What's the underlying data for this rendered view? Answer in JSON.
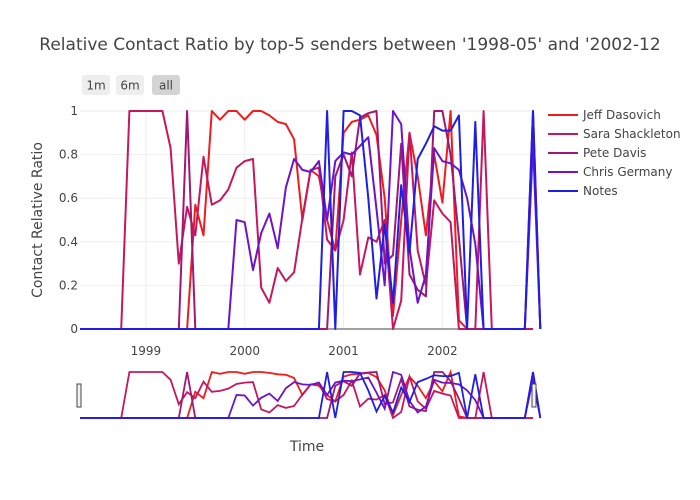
{
  "chart_data": {
    "type": "line",
    "title": "Relative Contact Ratio by top-5 senders between '1998-05' and '2002-12",
    "xlabel": "Time",
    "ylabel": "Contact Relative Ratio",
    "xlim": [
      "1998-05",
      "2002-12"
    ],
    "ylim": [
      0,
      1
    ],
    "x_ticks": [
      "1999",
      "2000",
      "2001",
      "2002"
    ],
    "y_ticks": [
      "0",
      "0.2",
      "0.4",
      "0.6",
      "0.8",
      "1"
    ],
    "grid": true,
    "legend_position": "right",
    "range_selector": [
      {
        "label": "1m",
        "active": false
      },
      {
        "label": "6m",
        "active": false
      },
      {
        "label": "all",
        "active": true
      }
    ],
    "range_slider": true,
    "series": [
      {
        "name": "Jeff Dasovich",
        "color": "#ef1c1c",
        "points": [
          [
            "1998-05",
            0
          ],
          [
            "1999-06",
            0
          ],
          [
            "1999-07",
            0.57
          ],
          [
            "1999-08",
            0.43
          ],
          [
            "1999-09",
            1
          ],
          [
            "1999-10",
            0.96
          ],
          [
            "1999-11",
            1
          ],
          [
            "1999-12",
            1
          ],
          [
            "2000-01",
            0.96
          ],
          [
            "2000-02",
            1
          ],
          [
            "2000-03",
            1
          ],
          [
            "2000-04",
            0.98
          ],
          [
            "2000-05",
            0.95
          ],
          [
            "2000-06",
            0.94
          ],
          [
            "2000-07",
            0.87
          ],
          [
            "2000-08",
            0.5
          ],
          [
            "2000-09",
            0.73
          ],
          [
            "2000-10",
            0.7
          ],
          [
            "2000-11",
            0.5
          ],
          [
            "2000-12",
            0.36
          ],
          [
            "2001-01",
            0.9
          ],
          [
            "2001-02",
            0.95
          ],
          [
            "2001-03",
            0.96
          ],
          [
            "2001-04",
            0.98
          ],
          [
            "2001-05",
            0.89
          ],
          [
            "2001-06",
            0.6
          ],
          [
            "2001-07",
            0.06
          ],
          [
            "2001-08",
            0.5
          ],
          [
            "2001-09",
            0.9
          ],
          [
            "2001-10",
            0.7
          ],
          [
            "2001-11",
            0.43
          ],
          [
            "2001-12",
            0.8
          ],
          [
            "2002-01",
            0.58
          ],
          [
            "2002-02",
            1
          ],
          [
            "2002-03",
            0.04
          ],
          [
            "2002-04",
            0
          ],
          [
            "2002-12",
            0
          ]
        ]
      },
      {
        "name": "Sara Shackleton",
        "color": "#c5175f",
        "points": [
          [
            "1998-05",
            0
          ],
          [
            "1998-10",
            0
          ],
          [
            "1998-11",
            1
          ],
          [
            "1999-01",
            1
          ],
          [
            "1999-02",
            1
          ],
          [
            "1999-03",
            1
          ],
          [
            "1999-04",
            0.83
          ],
          [
            "1999-05",
            0.3
          ],
          [
            "1999-06",
            0.56
          ],
          [
            "1999-07",
            0.43
          ],
          [
            "1999-08",
            0.79
          ],
          [
            "1999-09",
            0.57
          ],
          [
            "1999-10",
            0.59
          ],
          [
            "1999-11",
            0.64
          ],
          [
            "1999-12",
            0.74
          ],
          [
            "2000-01",
            0.77
          ],
          [
            "2000-02",
            0.78
          ],
          [
            "2000-03",
            0.19
          ],
          [
            "2000-04",
            0.12
          ],
          [
            "2000-05",
            0.28
          ],
          [
            "2000-06",
            0.22
          ],
          [
            "2000-07",
            0.26
          ],
          [
            "2000-08",
            0.51
          ],
          [
            "2000-09",
            0.73
          ],
          [
            "2000-10",
            0.74
          ],
          [
            "2000-11",
            0.41
          ],
          [
            "2000-12",
            0.36
          ],
          [
            "2001-01",
            0.5
          ],
          [
            "2001-02",
            0.81
          ],
          [
            "2001-03",
            0.25
          ],
          [
            "2001-04",
            0.42
          ],
          [
            "2001-05",
            0.4
          ],
          [
            "2001-06",
            0.5
          ],
          [
            "2001-07",
            0
          ],
          [
            "2001-08",
            0.13
          ],
          [
            "2001-09",
            0.9
          ],
          [
            "2001-10",
            0.36
          ],
          [
            "2001-11",
            0.2
          ],
          [
            "2001-12",
            0.59
          ],
          [
            "2002-01",
            0.53
          ],
          [
            "2002-02",
            0.49
          ],
          [
            "2002-03",
            0
          ],
          [
            "2002-05",
            0
          ],
          [
            "2002-06",
            1
          ],
          [
            "2002-07",
            0
          ],
          [
            "2002-12",
            0
          ]
        ]
      },
      {
        "name": "Pete Davis",
        "color": "#a01874",
        "points": [
          [
            "1998-05",
            0
          ],
          [
            "1999-05",
            0
          ],
          [
            "1999-06",
            1
          ],
          [
            "1999-07",
            0
          ],
          [
            "2000-11",
            0
          ],
          [
            "2000-12",
            0.7
          ],
          [
            "2001-01",
            0.8
          ],
          [
            "2001-02",
            0.7
          ],
          [
            "2001-03",
            0.97
          ],
          [
            "2001-04",
            0.99
          ],
          [
            "2001-05",
            1
          ],
          [
            "2001-06",
            0.3
          ],
          [
            "2001-07",
            0.34
          ],
          [
            "2001-08",
            0.85
          ],
          [
            "2001-09",
            0.25
          ],
          [
            "2001-10",
            0.18
          ],
          [
            "2001-11",
            0.15
          ],
          [
            "2001-12",
            1
          ],
          [
            "2002-01",
            1
          ],
          [
            "2002-02",
            0.8
          ],
          [
            "2002-03",
            0.42
          ],
          [
            "2002-04",
            0
          ],
          [
            "2002-11",
            0
          ],
          [
            "2002-12",
            1
          ],
          [
            "2002-12-28",
            0
          ]
        ]
      },
      {
        "name": "Chris Germany",
        "color": "#6d14c9",
        "points": [
          [
            "1998-05",
            0
          ],
          [
            "1999-11",
            0
          ],
          [
            "1999-12",
            0.5
          ],
          [
            "2000-01",
            0.49
          ],
          [
            "2000-02",
            0.27
          ],
          [
            "2000-03",
            0.44
          ],
          [
            "2000-04",
            0.53
          ],
          [
            "2000-05",
            0.37
          ],
          [
            "2000-06",
            0.65
          ],
          [
            "2000-07",
            0.78
          ],
          [
            "2000-08",
            0.73
          ],
          [
            "2000-09",
            0.72
          ],
          [
            "2000-10",
            0.77
          ],
          [
            "2000-11",
            0.5
          ],
          [
            "2000-12",
            0.77
          ],
          [
            "2001-01",
            0.81
          ],
          [
            "2001-02",
            0.8
          ],
          [
            "2001-03",
            0.84
          ],
          [
            "2001-04",
            0.88
          ],
          [
            "2001-05",
            0.55
          ],
          [
            "2001-06",
            0.2
          ],
          [
            "2001-07",
            1
          ],
          [
            "2001-08",
            0.94
          ],
          [
            "2001-09",
            0.37
          ],
          [
            "2001-10",
            0.12
          ],
          [
            "2001-11",
            0.25
          ],
          [
            "2001-12",
            0.83
          ],
          [
            "2002-01",
            0.77
          ],
          [
            "2002-02",
            0.76
          ],
          [
            "2002-03",
            0.73
          ],
          [
            "2002-04",
            0.6
          ],
          [
            "2002-05",
            0.39
          ],
          [
            "2002-06",
            0
          ],
          [
            "2002-11",
            0
          ],
          [
            "2002-12",
            0.85
          ],
          [
            "2002-12-28",
            0
          ]
        ]
      },
      {
        "name": "Notes",
        "color": "#1e1ee6",
        "points": [
          [
            "1998-05",
            0
          ],
          [
            "2000-10",
            0
          ],
          [
            "2000-11",
            1
          ],
          [
            "2000-12",
            0
          ],
          [
            "2001-01",
            1
          ],
          [
            "2001-02",
            1
          ],
          [
            "2001-03",
            0.98
          ],
          [
            "2001-04",
            0.6
          ],
          [
            "2001-05",
            0.14
          ],
          [
            "2001-06",
            0.48
          ],
          [
            "2001-07",
            0.12
          ],
          [
            "2001-08",
            0.66
          ],
          [
            "2001-09",
            0.35
          ],
          [
            "2001-10",
            0.78
          ],
          [
            "2001-11",
            0.85
          ],
          [
            "2001-12",
            0.93
          ],
          [
            "2002-01",
            0.91
          ],
          [
            "2002-02",
            0.91
          ],
          [
            "2002-03",
            0.98
          ],
          [
            "2002-04",
            0
          ],
          [
            "2002-05",
            0.95
          ],
          [
            "2002-06",
            0
          ],
          [
            "2002-11",
            0
          ],
          [
            "2002-12",
            1
          ],
          [
            "2002-12-28",
            0
          ]
        ]
      }
    ]
  }
}
